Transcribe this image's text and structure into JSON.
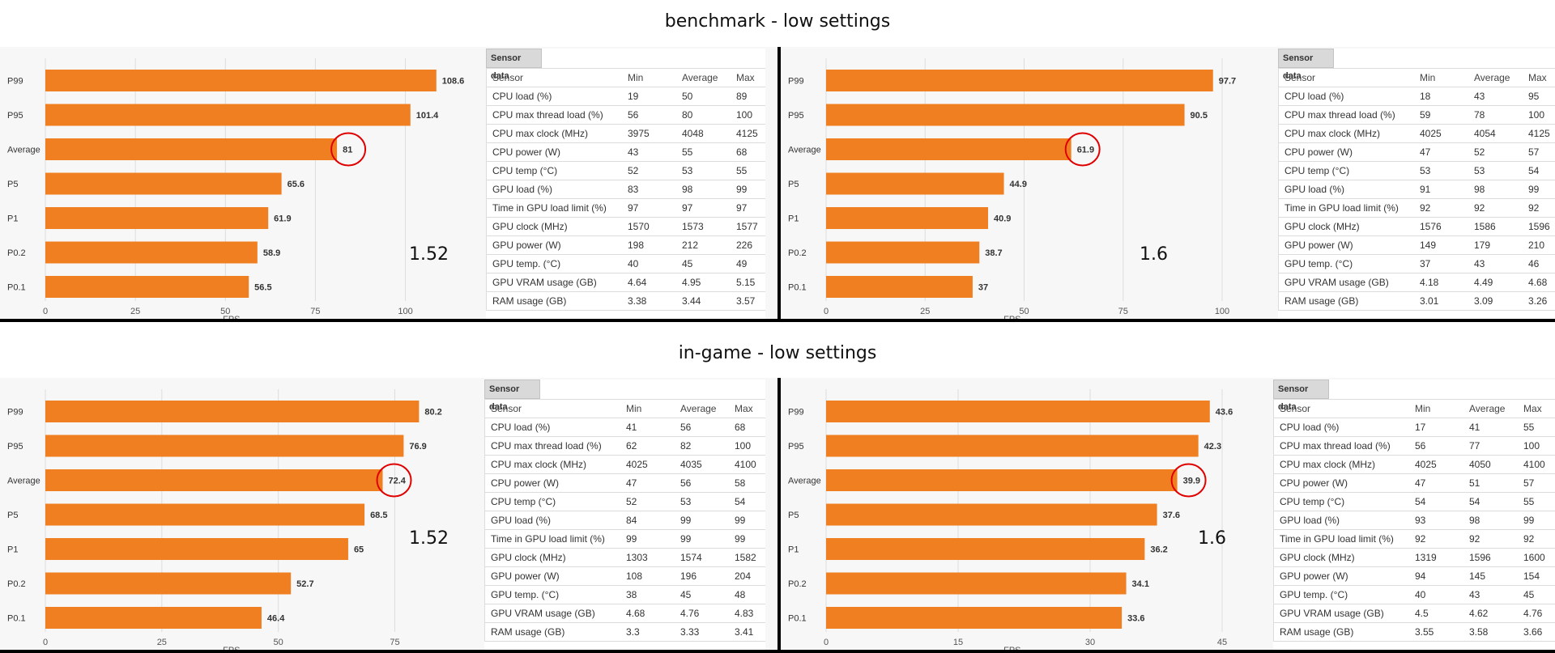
{
  "titles": {
    "benchmark": "benchmark - low settings",
    "ingame": "in-game - low settings"
  },
  "sensor_header": [
    "Sensor",
    "Min",
    "Average",
    "Max"
  ],
  "sensor_tab_label": "Sensor data",
  "colors": {
    "bar": "#f07f21",
    "highlight_ring": "#e00000",
    "separator": "#000000"
  },
  "panels": [
    {
      "id": "bench-a",
      "ratio": "1.52",
      "highlight": "Average",
      "sensor_rows": [
        [
          "CPU load (%)",
          "19",
          "50",
          "89"
        ],
        [
          "CPU max thread load (%)",
          "56",
          "80",
          "100"
        ],
        [
          "CPU max clock (MHz)",
          "3975",
          "4048",
          "4125"
        ],
        [
          "CPU power (W)",
          "43",
          "55",
          "68"
        ],
        [
          "CPU temp (°C)",
          "52",
          "53",
          "55"
        ],
        [
          "GPU load (%)",
          "83",
          "98",
          "99"
        ],
        [
          "Time in GPU load limit (%)",
          "97",
          "97",
          "97"
        ],
        [
          "GPU clock (MHz)",
          "1570",
          "1573",
          "1577"
        ],
        [
          "GPU power (W)",
          "198",
          "212",
          "226"
        ],
        [
          "GPU temp. (°C)",
          "40",
          "45",
          "49"
        ],
        [
          "GPU VRAM usage (GB)",
          "4.64",
          "4.95",
          "5.15"
        ],
        [
          "RAM usage (GB)",
          "3.38",
          "3.44",
          "3.57"
        ]
      ]
    },
    {
      "id": "bench-b",
      "ratio": "1.6",
      "highlight": "Average",
      "sensor_rows": [
        [
          "CPU load (%)",
          "18",
          "43",
          "95"
        ],
        [
          "CPU max thread load (%)",
          "59",
          "78",
          "100"
        ],
        [
          "CPU max clock (MHz)",
          "4025",
          "4054",
          "4125"
        ],
        [
          "CPU power (W)",
          "47",
          "52",
          "57"
        ],
        [
          "CPU temp (°C)",
          "53",
          "53",
          "54"
        ],
        [
          "GPU load (%)",
          "91",
          "98",
          "99"
        ],
        [
          "Time in GPU load limit (%)",
          "92",
          "92",
          "92"
        ],
        [
          "GPU clock (MHz)",
          "1576",
          "1586",
          "1596"
        ],
        [
          "GPU power (W)",
          "149",
          "179",
          "210"
        ],
        [
          "GPU temp. (°C)",
          "37",
          "43",
          "46"
        ],
        [
          "GPU VRAM usage (GB)",
          "4.18",
          "4.49",
          "4.68"
        ],
        [
          "RAM usage (GB)",
          "3.01",
          "3.09",
          "3.26"
        ]
      ]
    },
    {
      "id": "game-a",
      "ratio": "1.52",
      "highlight": "Average",
      "sensor_rows": [
        [
          "CPU load (%)",
          "41",
          "56",
          "68"
        ],
        [
          "CPU max thread load (%)",
          "62",
          "82",
          "100"
        ],
        [
          "CPU max clock (MHz)",
          "4025",
          "4035",
          "4100"
        ],
        [
          "CPU power (W)",
          "47",
          "56",
          "58"
        ],
        [
          "CPU temp (°C)",
          "52",
          "53",
          "54"
        ],
        [
          "GPU load (%)",
          "84",
          "99",
          "99"
        ],
        [
          "Time in GPU load limit (%)",
          "99",
          "99",
          "99"
        ],
        [
          "GPU clock (MHz)",
          "1303",
          "1574",
          "1582"
        ],
        [
          "GPU power (W)",
          "108",
          "196",
          "204"
        ],
        [
          "GPU temp. (°C)",
          "38",
          "45",
          "48"
        ],
        [
          "GPU VRAM usage (GB)",
          "4.68",
          "4.76",
          "4.83"
        ],
        [
          "RAM usage (GB)",
          "3.3",
          "3.33",
          "3.41"
        ]
      ]
    },
    {
      "id": "game-b",
      "ratio": "1.6",
      "highlight": "Average",
      "sensor_rows": [
        [
          "CPU load (%)",
          "17",
          "41",
          "55"
        ],
        [
          "CPU max thread load (%)",
          "56",
          "77",
          "100"
        ],
        [
          "CPU max clock (MHz)",
          "4025",
          "4050",
          "4100"
        ],
        [
          "CPU power (W)",
          "47",
          "51",
          "57"
        ],
        [
          "CPU temp (°C)",
          "54",
          "54",
          "55"
        ],
        [
          "GPU load (%)",
          "93",
          "98",
          "99"
        ],
        [
          "Time in GPU load limit (%)",
          "92",
          "92",
          "92"
        ],
        [
          "GPU clock (MHz)",
          "1319",
          "1596",
          "1600"
        ],
        [
          "GPU power (W)",
          "94",
          "145",
          "154"
        ],
        [
          "GPU temp. (°C)",
          "40",
          "43",
          "45"
        ],
        [
          "GPU VRAM usage (GB)",
          "4.5",
          "4.62",
          "4.76"
        ],
        [
          "RAM usage (GB)",
          "3.55",
          "3.58",
          "3.66"
        ]
      ]
    }
  ],
  "chart_data": [
    {
      "type": "bar",
      "orientation": "horizontal",
      "xlabel": "FPS",
      "xlim": [
        0,
        110
      ],
      "xticks": [
        0,
        25,
        50,
        75,
        100
      ],
      "grid": true,
      "categories": [
        "P99",
        "P95",
        "Average",
        "P5",
        "P1",
        "P0.2",
        "P0.1"
      ],
      "values": [
        108.6,
        101.4,
        81,
        65.6,
        61.9,
        58.9,
        56.5
      ],
      "labels": [
        "108.6",
        "101.4",
        "81",
        "65.6",
        "61.9",
        "58.9",
        "56.5"
      ]
    },
    {
      "type": "bar",
      "orientation": "horizontal",
      "xlabel": "FPS",
      "xlim": [
        0,
        100
      ],
      "xticks": [
        0,
        25,
        50,
        75,
        100
      ],
      "grid": true,
      "categories": [
        "P99",
        "P95",
        "Average",
        "P5",
        "P1",
        "P0.2",
        "P0.1"
      ],
      "values": [
        97.7,
        90.5,
        61.9,
        44.9,
        40.9,
        38.7,
        37
      ],
      "labels": [
        "97.7",
        "90.5",
        "61.9",
        "44.9",
        "40.9",
        "38.7",
        "37"
      ]
    },
    {
      "type": "bar",
      "orientation": "horizontal",
      "xlabel": "FPS",
      "xlim": [
        0,
        85
      ],
      "xticks": [
        0,
        25,
        50,
        75
      ],
      "grid": true,
      "categories": [
        "P99",
        "P95",
        "Average",
        "P5",
        "P1",
        "P0.2",
        "P0.1"
      ],
      "values": [
        80.2,
        76.9,
        72.4,
        68.5,
        65,
        52.7,
        46.4
      ],
      "labels": [
        "80.2",
        "76.9",
        "72.4",
        "68.5",
        "65",
        "52.7",
        "46.4"
      ]
    },
    {
      "type": "bar",
      "orientation": "horizontal",
      "xlabel": "FPS",
      "xlim": [
        0,
        45
      ],
      "xticks": [
        0,
        15,
        30,
        45
      ],
      "grid": true,
      "categories": [
        "P99",
        "P95",
        "Average",
        "P5",
        "P1",
        "P0.2",
        "P0.1"
      ],
      "values": [
        43.6,
        42.3,
        39.9,
        37.6,
        36.2,
        34.1,
        33.6
      ],
      "labels": [
        "43.6",
        "42.3",
        "39.9",
        "37.6",
        "36.2",
        "34.1",
        "33.6"
      ]
    }
  ]
}
